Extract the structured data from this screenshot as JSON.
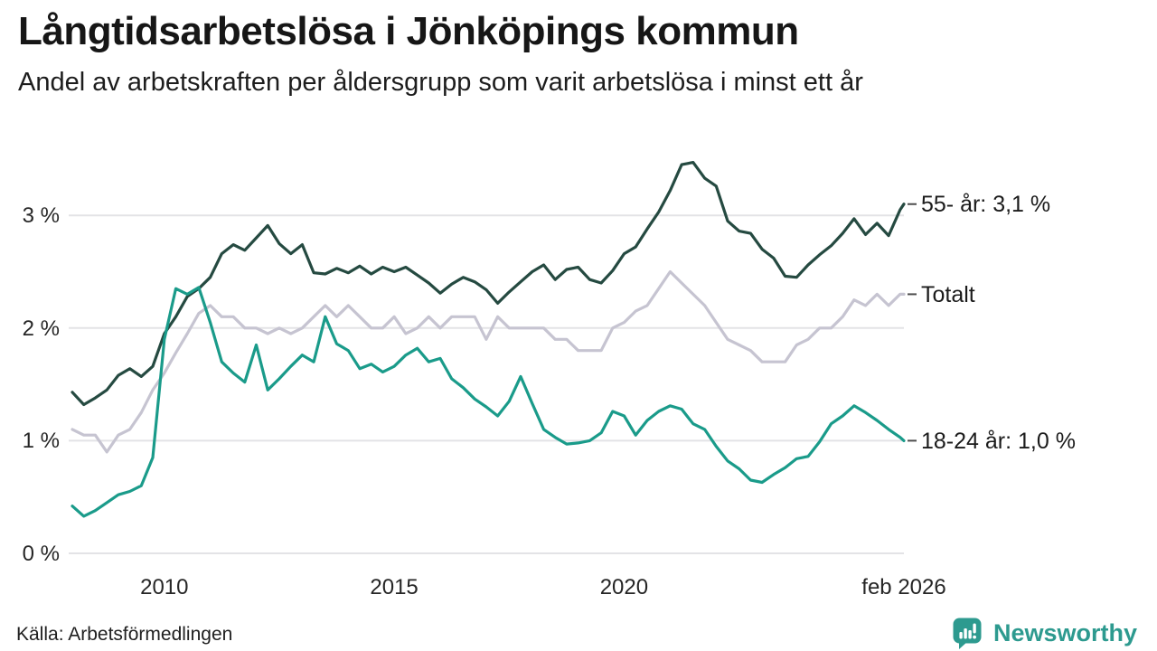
{
  "page": {
    "title": "Långtidsarbetslösa i Jönköpings kommun",
    "subtitle": "Andel av arbetskraften per åldersgrupp som varit arbetslösa i minst ett år",
    "source": "Källa: Arbetsförmedlingen",
    "branding": {
      "name": "Newsworthy",
      "logo_icon": "bar-chart-speech-bubble",
      "color": "#2D9A8F"
    }
  },
  "chart_data": {
    "type": "line",
    "title": "Långtidsarbetslösa i Jönköpings kommun",
    "subtitle": "Andel av arbetskraften per åldersgrupp som varit arbetslösa i minst ett år",
    "source": "Källa: Arbetsförmedlingen",
    "x_unit": "year (quarterly samples, Jan 2008 – Feb 2026)",
    "xlim": [
      2008,
      2026.083
    ],
    "ylim": [
      0,
      3.55
    ],
    "grid": "horizontal",
    "legend_position": "right-end-labels",
    "x": [
      2008,
      2008.25,
      2008.5,
      2008.75,
      2009,
      2009.25,
      2009.5,
      2009.75,
      2010,
      2010.25,
      2010.5,
      2010.75,
      2011,
      2011.25,
      2011.5,
      2011.75,
      2012,
      2012.25,
      2012.5,
      2012.75,
      2013,
      2013.25,
      2013.5,
      2013.75,
      2014,
      2014.25,
      2014.5,
      2014.75,
      2015,
      2015.25,
      2015.5,
      2015.75,
      2016,
      2016.25,
      2016.5,
      2016.75,
      2017,
      2017.25,
      2017.5,
      2017.75,
      2018,
      2018.25,
      2018.5,
      2018.75,
      2019,
      2019.25,
      2019.5,
      2019.75,
      2020,
      2020.25,
      2020.5,
      2020.75,
      2021,
      2021.25,
      2021.5,
      2021.75,
      2022,
      2022.25,
      2022.5,
      2022.75,
      2023,
      2023.25,
      2023.5,
      2023.75,
      2024,
      2024.25,
      2024.5,
      2024.75,
      2025,
      2025.25,
      2025.5,
      2025.75,
      2026,
      2026.083
    ],
    "series": [
      {
        "name": "55- år",
        "color": "#254A41",
        "end_label": "55- år: 3,1 %",
        "end_value": 3.1,
        "values": [
          1.43,
          1.32,
          1.38,
          1.45,
          1.58,
          1.64,
          1.57,
          1.66,
          1.95,
          2.1,
          2.28,
          2.35,
          2.45,
          2.66,
          2.74,
          2.69,
          2.8,
          2.91,
          2.75,
          2.66,
          2.74,
          2.49,
          2.48,
          2.53,
          2.49,
          2.55,
          2.48,
          2.54,
          2.5,
          2.54,
          2.47,
          2.4,
          2.31,
          2.39,
          2.45,
          2.41,
          2.34,
          2.22,
          2.32,
          2.41,
          2.5,
          2.56,
          2.43,
          2.52,
          2.54,
          2.43,
          2.4,
          2.51,
          2.66,
          2.72,
          2.88,
          3.03,
          3.22,
          3.45,
          3.47,
          3.33,
          3.26,
          2.95,
          2.86,
          2.84,
          2.7,
          2.62,
          2.46,
          2.45,
          2.56,
          2.65,
          2.73,
          2.84,
          2.97,
          2.83,
          2.93,
          2.82,
          3.05,
          3.1
        ]
      },
      {
        "name": "Totalt",
        "color": "#C6C4D1",
        "end_label": "Totalt",
        "end_value": 2.3,
        "values": [
          1.1,
          1.05,
          1.05,
          0.9,
          1.05,
          1.1,
          1.25,
          1.45,
          1.6,
          1.78,
          1.95,
          2.13,
          2.2,
          2.1,
          2.1,
          2.0,
          2.0,
          1.95,
          2.0,
          1.95,
          2.0,
          2.1,
          2.2,
          2.1,
          2.2,
          2.1,
          2.0,
          2.0,
          2.1,
          1.95,
          2.0,
          2.1,
          2.0,
          2.1,
          2.1,
          2.1,
          1.9,
          2.1,
          2.0,
          2.0,
          2.0,
          2.0,
          1.9,
          1.9,
          1.8,
          1.8,
          1.8,
          2.0,
          2.05,
          2.15,
          2.2,
          2.35,
          2.5,
          2.4,
          2.3,
          2.2,
          2.05,
          1.9,
          1.85,
          1.8,
          1.7,
          1.7,
          1.7,
          1.85,
          1.9,
          2.0,
          2.0,
          2.1,
          2.25,
          2.2,
          2.3,
          2.2,
          2.3,
          2.3
        ]
      },
      {
        "name": "18-24 år",
        "color": "#1A9B8A",
        "end_label": "18-24 år: 1,0 %",
        "end_value": 1.0,
        "values": [
          0.42,
          0.33,
          0.38,
          0.45,
          0.52,
          0.55,
          0.6,
          0.85,
          1.9,
          2.35,
          2.3,
          2.36,
          2.05,
          1.7,
          1.6,
          1.52,
          1.85,
          1.45,
          1.55,
          1.66,
          1.76,
          1.7,
          2.1,
          1.86,
          1.8,
          1.64,
          1.68,
          1.61,
          1.66,
          1.76,
          1.82,
          1.7,
          1.73,
          1.55,
          1.47,
          1.37,
          1.3,
          1.22,
          1.35,
          1.57,
          1.33,
          1.1,
          1.03,
          0.97,
          0.98,
          1.0,
          1.07,
          1.26,
          1.22,
          1.05,
          1.18,
          1.26,
          1.31,
          1.28,
          1.15,
          1.1,
          0.95,
          0.82,
          0.75,
          0.65,
          0.63,
          0.7,
          0.76,
          0.84,
          0.86,
          0.99,
          1.15,
          1.22,
          1.31,
          1.25,
          1.18,
          1.1,
          1.03,
          1.0
        ]
      }
    ],
    "yticks": [
      {
        "value": 0,
        "label": "0 %"
      },
      {
        "value": 1,
        "label": "1 %"
      },
      {
        "value": 2,
        "label": "2 %"
      },
      {
        "value": 3,
        "label": "3 %"
      }
    ],
    "xticks": [
      {
        "value": 2010,
        "label": "2010"
      },
      {
        "value": 2015,
        "label": "2015"
      },
      {
        "value": 2020,
        "label": "2020"
      },
      {
        "value": 2026.083,
        "label": "feb 2026"
      }
    ]
  }
}
